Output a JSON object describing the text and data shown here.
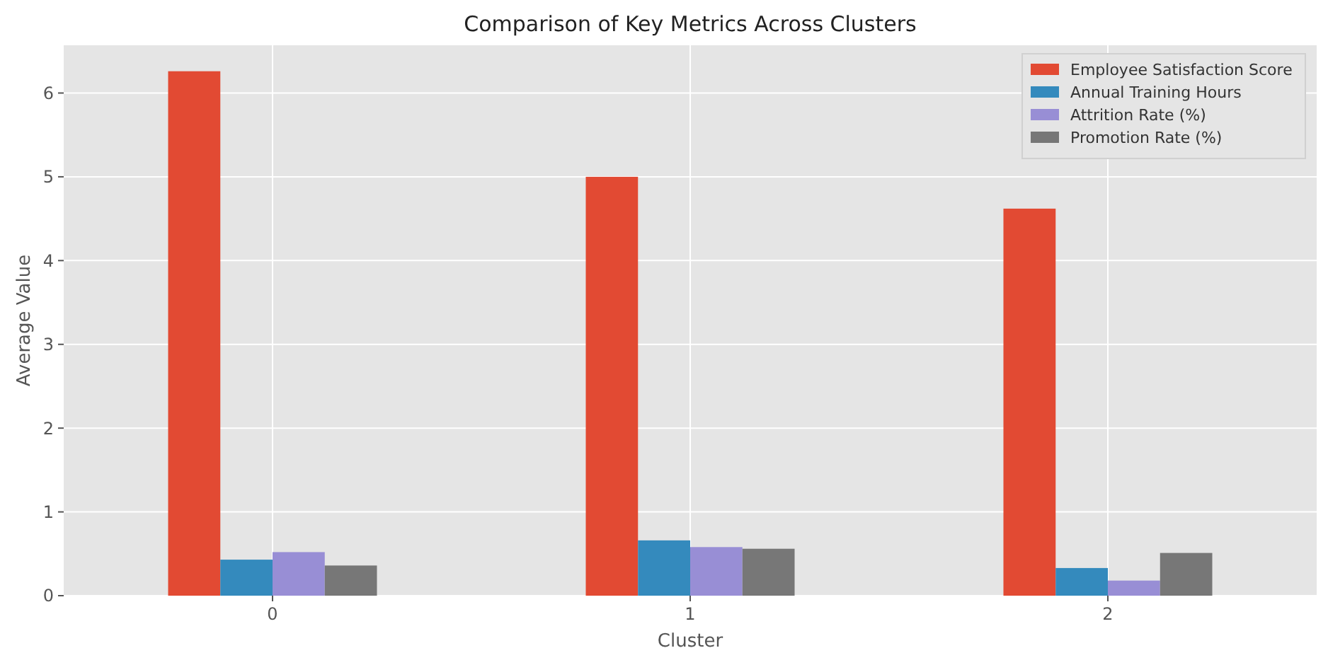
{
  "chart_data": {
    "type": "bar",
    "title": "Comparison of Key Metrics Across Clusters",
    "xlabel": "Cluster",
    "ylabel": "Average Value",
    "categories": [
      "0",
      "1",
      "2"
    ],
    "series": [
      {
        "name": "Employee Satisfaction Score",
        "color": "#e24a33",
        "values": [
          6.26,
          5.0,
          4.62
        ]
      },
      {
        "name": "Annual Training Hours",
        "color": "#348abd",
        "values": [
          0.43,
          0.66,
          0.33
        ]
      },
      {
        "name": "Attrition Rate (%)",
        "color": "#988ed5",
        "values": [
          0.52,
          0.58,
          0.18
        ]
      },
      {
        "name": "Promotion Rate (%)",
        "color": "#777777",
        "values": [
          0.36,
          0.56,
          0.51
        ]
      }
    ],
    "ylim": [
      0,
      6.57
    ],
    "yticks": [
      0,
      1,
      2,
      3,
      4,
      5,
      6
    ],
    "grid": true,
    "legend": "top right"
  }
}
